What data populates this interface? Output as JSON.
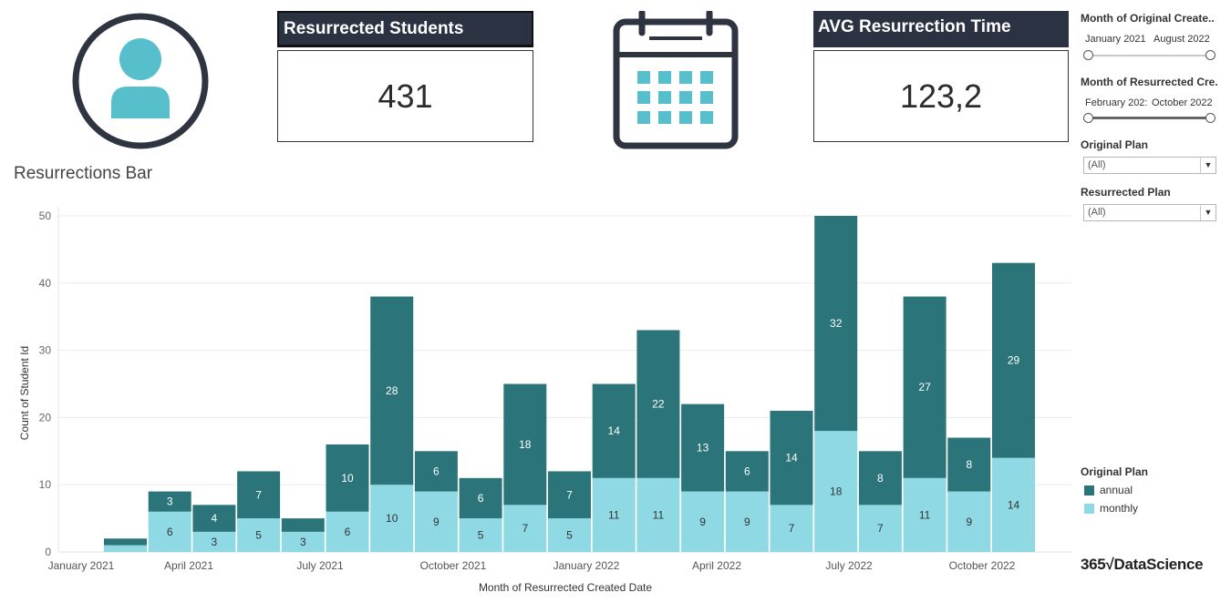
{
  "kpis": {
    "students_title": "Resurrected Students",
    "students_value": "431",
    "avg_title": "AVG Resurrection Time",
    "avg_value": "123,2"
  },
  "icons": {
    "left": "user-avatar-icon",
    "middle": "calendar-icon"
  },
  "chart_title": "Resurrections Bar",
  "filters": {
    "orig_created": {
      "label": "Month of Original Create..",
      "from": "January 2021",
      "to": "August 2022"
    },
    "res_created": {
      "label": "Month of Resurrected Cre..",
      "from": "February 202:",
      "to": "October 2022"
    },
    "orig_plan": {
      "label": "Original Plan",
      "value": "(All)"
    },
    "res_plan": {
      "label": "Resurrected Plan",
      "value": "(All)"
    }
  },
  "legend": {
    "title": "Original Plan",
    "items": [
      "annual",
      "monthly"
    ]
  },
  "logo": "365√DataScience",
  "colors": {
    "annual": "#2b7479",
    "monthly": "#8fd9e4",
    "kpi_header": "#2b3242",
    "icon": "#56bfcb",
    "dark": "#2e3440"
  },
  "chart_data": {
    "type": "bar",
    "stacked": true,
    "xlabel": "Month of Resurrected Created Date",
    "ylabel": "Count of Student Id",
    "ylim": [
      0,
      50
    ],
    "yticks": [
      0,
      10,
      20,
      30,
      40,
      50
    ],
    "x_tick_labels": [
      "January 2021",
      "April 2021",
      "July 2021",
      "October 2021",
      "January 2022",
      "April 2022",
      "July 2022",
      "October 2022"
    ],
    "categories": [
      "February 2021",
      "March 2021",
      "April 2021",
      "May 2021",
      "June 2021",
      "July 2021",
      "August 2021",
      "September 2021",
      "October 2021",
      "November 2021",
      "December 2021",
      "January 2022",
      "February 2022",
      "March 2022",
      "April 2022",
      "May 2022",
      "June 2022",
      "July 2022",
      "August 2022",
      "September 2022",
      "October 2022"
    ],
    "series": [
      {
        "name": "monthly",
        "values": [
          1,
          6,
          3,
          5,
          3,
          6,
          10,
          9,
          5,
          7,
          5,
          11,
          11,
          9,
          9,
          7,
          18,
          7,
          11,
          9,
          14
        ],
        "labels": [
          "",
          "6",
          "3",
          "5",
          "3",
          "6",
          "10",
          "9",
          "5",
          "7",
          "5",
          "11",
          "11",
          "9",
          "9",
          "7",
          "18",
          "7",
          "11",
          "9",
          "14"
        ]
      },
      {
        "name": "annual",
        "values": [
          1,
          3,
          4,
          7,
          2,
          10,
          28,
          6,
          6,
          18,
          7,
          14,
          22,
          13,
          6,
          14,
          32,
          8,
          27,
          8,
          29
        ],
        "labels": [
          "",
          "3",
          "4",
          "7",
          "",
          "10",
          "28",
          "6",
          "6",
          "18",
          "7",
          "14",
          "22",
          "13",
          "6",
          "14",
          "32",
          "8",
          "27",
          "8",
          "29"
        ]
      }
    ],
    "legend_position": "right",
    "grid": true
  }
}
